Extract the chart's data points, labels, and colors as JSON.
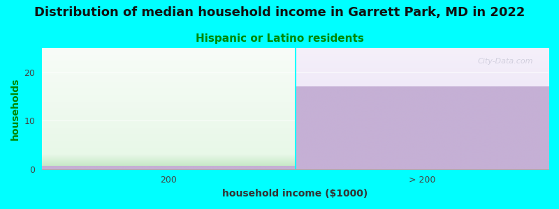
{
  "title": "Distribution of median household income in Garrett Park, MD in 2022",
  "subtitle": "Hispanic or Latino residents",
  "categories": [
    "200",
    "> 200"
  ],
  "values": [
    3,
    17
  ],
  "xlabel": "household income ($1000)",
  "ylabel": "households",
  "ylim": [
    0,
    25
  ],
  "yticks": [
    0,
    10,
    20
  ],
  "background_color": "#00ffff",
  "plot_bg_top": "#f0f8ff",
  "plot_bg_bottom": "#ffffff",
  "left_bar_color_bottom": "#c5e8c5",
  "left_bar_color_top": "#e8f8e8",
  "left_strip_color": "#c5b0d5",
  "right_bar_color": "#c5b0d5",
  "right_bg_top": "#f5f0fa",
  "right_bg_bottom": "#f0eaf8",
  "title_fontsize": 13,
  "subtitle_fontsize": 11,
  "subtitle_color": "#008800",
  "axis_label_fontsize": 10,
  "tick_label_fontsize": 9,
  "watermark": "City-Data.com",
  "ylabel_color": "#008800"
}
